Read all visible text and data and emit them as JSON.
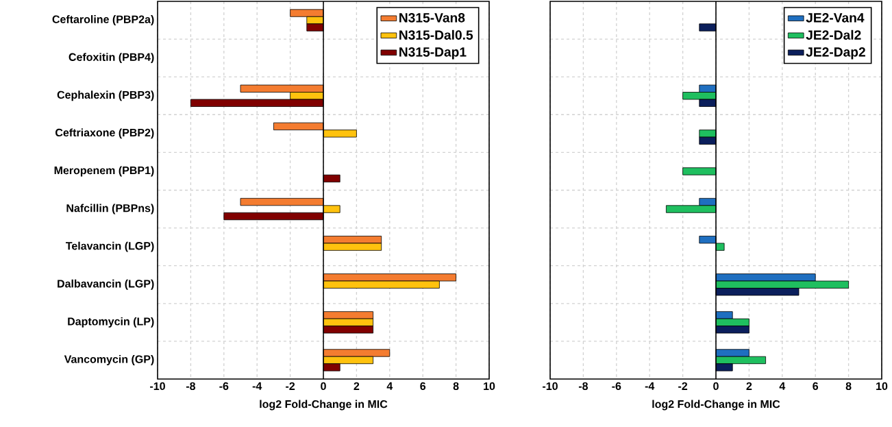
{
  "chart_data": [
    {
      "type": "bar",
      "orientation": "horizontal",
      "xlabel": "log2 Fold-Change in MIC",
      "categories": [
        "Ceftaroline (PBP2a)",
        "Cefoxitin (PBP4)",
        "Cephalexin (PBP3)",
        "Ceftriaxone (PBP2)",
        "Meropenem (PBP1)",
        "Nafcillin (PBPns)",
        "Telavancin (LGP)",
        "Dalbavancin (LGP)",
        "Daptomycin (LP)",
        "Vancomycin (GP)"
      ],
      "series": [
        {
          "name": "N315-Van8",
          "color": "#f47c30",
          "values": [
            -2,
            null,
            -5,
            -3,
            null,
            -5,
            3.5,
            8,
            3,
            4
          ]
        },
        {
          "name": "N315-Dal0.5",
          "color": "#ffc20e",
          "values": [
            -1,
            null,
            -2,
            2,
            null,
            1,
            3.5,
            7,
            3,
            3
          ]
        },
        {
          "name": "N315-Dap1",
          "color": "#800000",
          "values": [
            -1,
            null,
            -8,
            null,
            1,
            -6,
            null,
            null,
            3,
            1
          ]
        }
      ],
      "xlim": [
        -10,
        10
      ],
      "xticks": [
        -10,
        -8,
        -6,
        -4,
        -2,
        0,
        2,
        4,
        6,
        8,
        10
      ],
      "grid": true,
      "legend": "top right"
    },
    {
      "type": "bar",
      "orientation": "horizontal",
      "xlabel": "log2 Fold-Change in MIC",
      "categories": [
        null,
        null,
        null,
        null,
        null,
        null,
        null,
        null,
        null,
        null
      ],
      "series": [
        {
          "name": "JE2-Van4",
          "color": "#1f6fc0",
          "values": [
            null,
            null,
            -1,
            null,
            null,
            -1,
            -1,
            6,
            1,
            2
          ]
        },
        {
          "name": "JE2-Dal2",
          "color": "#1fbf5f",
          "values": [
            null,
            null,
            -2,
            -1,
            -2,
            -3,
            0.5,
            8,
            2,
            3
          ]
        },
        {
          "name": "JE2-Dap2",
          "color": "#0b1f5c",
          "values": [
            -1,
            null,
            -1,
            -1,
            null,
            null,
            null,
            5,
            2,
            1
          ]
        }
      ],
      "xlim": [
        -10,
        10
      ],
      "xticks": [
        -10,
        -8,
        -6,
        -4,
        -2,
        0,
        2,
        4,
        6,
        8,
        10
      ],
      "grid": true,
      "legend": "top right",
      "tick_labels": "x"
    }
  ]
}
